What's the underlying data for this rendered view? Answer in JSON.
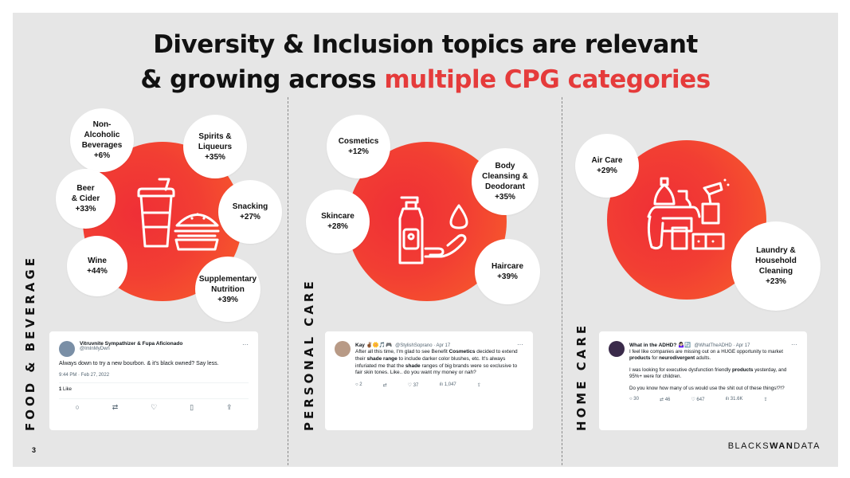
{
  "title": {
    "line1": "Diversity & Inclusion topics are relevant",
    "line2_black": "& growing across",
    "line2_red": "multiple CPG categories"
  },
  "colors": {
    "accent": "#e53b3b",
    "circle_start": "#ef2f36",
    "circle_end": "#f8612a",
    "panel_bg": "#e6e6e6"
  },
  "sections": {
    "food": {
      "label": "FOOD & BEVERAGE",
      "icon": "drink-burger-icon",
      "bubbles": [
        {
          "label": "Non-\nAlcoholic\nBeverages",
          "value": "+6%"
        },
        {
          "label": "Spirits &\nLiqueurs",
          "value": "+35%"
        },
        {
          "label": "Beer\n& Cider",
          "value": "+33%"
        },
        {
          "label": "Snacking",
          "value": "+27%"
        },
        {
          "label": "Wine",
          "value": "+44%"
        },
        {
          "label": "Supplementary\nNutrition",
          "value": "+39%"
        }
      ],
      "tweet": {
        "name": "Vitruvnite Sympathizer & Fupa Aficionado",
        "handle": "@ImInMyDwn",
        "more": "···",
        "body": "Always down to try a new bourbon. & it's black owned? Say less.",
        "meta": "9:44 PM · Feb 27, 2022",
        "likes_count": "1",
        "likes_label": "Like"
      }
    },
    "personal": {
      "label": "PERSONAL CARE",
      "icon": "soap-hand-icon",
      "bubbles": [
        {
          "label": "Cosmetics",
          "value": "+12%"
        },
        {
          "label": "Body\nCleansing &\nDeodorant",
          "value": "+35%"
        },
        {
          "label": "Skincare",
          "value": "+28%"
        },
        {
          "label": "Haircare",
          "value": "+39%"
        }
      ],
      "tweet": {
        "name": "Kay ✌🏾🌼🎵🎮",
        "handle": "@StylishSoprano · Apr 17",
        "more": "···",
        "body_1": "After all this time, I'm glad to see Benefit ",
        "body_b1": "Cosmetics",
        "body_2": " decided to extend their ",
        "body_b2": "shade range",
        "body_3": " to include darker color blushes, etc. It's always infuriated me that the ",
        "body_b3": "shade",
        "body_4": " ranges of big brands were so exclusive to fair skin tones. Like.. do you want my money or nah?",
        "replies": "2",
        "retweets": "",
        "likes": "37",
        "views": "1,047"
      }
    },
    "home": {
      "label": "HOME CARE",
      "icon": "cleaning-supplies-icon",
      "bubbles": [
        {
          "label": "Air Care",
          "value": "+29%"
        },
        {
          "label": "Laundry &\nHousehold\nCleaning",
          "value": "+23%"
        }
      ],
      "tweet": {
        "name": "What in the ADHD? 🤷🏻‍♀️🔄",
        "handle": "@WhatTheADHD · Apr 17",
        "more": "···",
        "p1_a": "I feel like companies are missing out on a HUGE opportunity to market ",
        "p1_b": "products",
        "p1_c": " for ",
        "p1_d": "neurodivergent",
        "p1_e": " adults.",
        "p2_a": "I was looking for executive dysfunction friendly ",
        "p2_b": "products",
        "p2_c": " yesterday, and 95%+ were for children.",
        "p3": "Do you know how many of us would use the shit out of these things!?!?",
        "replies": "30",
        "retweets": "46",
        "likes": "647",
        "views": "31.6K"
      }
    }
  },
  "footer": {
    "page_number": "3",
    "brand_a": "BLACKS",
    "brand_b": "WAN",
    "brand_c": "DATA"
  }
}
